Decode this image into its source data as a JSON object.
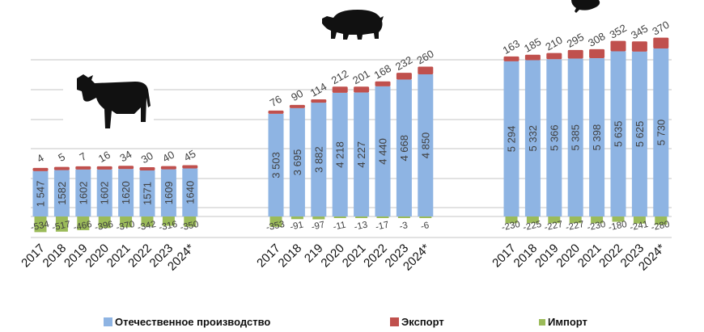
{
  "colors": {
    "production": "#8EB4E3",
    "export": "#C0504D",
    "import": "#9BBB59",
    "grid": "#D9D9D9"
  },
  "legend": [
    {
      "label": "Отечественное производство",
      "color": "#8EB4E3"
    },
    {
      "label": "Экспорт",
      "color": "#C0504D"
    },
    {
      "label": "Импорт",
      "color": "#9BBB59"
    }
  ],
  "chart_data": [
    {
      "type": "bar",
      "stacked": true,
      "subject": "cattle",
      "icon": "cow-icon",
      "categories": [
        "2017",
        "2018",
        "2019",
        "2020",
        "2021",
        "2022",
        "2023",
        "2024*"
      ],
      "series": [
        {
          "name": "Отечественное производство",
          "values": [
            1547,
            1582,
            1602,
            1602,
            1620,
            1571,
            1609,
            1640
          ],
          "labels": [
            "1 547",
            "1582",
            "1602",
            "1602",
            "1620",
            "1571",
            "1609",
            "1640"
          ]
        },
        {
          "name": "Экспорт",
          "values": [
            4,
            5,
            7,
            16,
            34,
            30,
            40,
            45
          ]
        },
        {
          "name": "Импорт",
          "values": [
            -534,
            -517,
            -466,
            -396,
            -370,
            -342,
            -316,
            -350
          ]
        }
      ]
    },
    {
      "type": "bar",
      "stacked": true,
      "subject": "pigs",
      "icon": "pig-icon",
      "categories": [
        "2017",
        "2018",
        "219",
        "2020",
        "2021",
        "2022",
        "2023",
        "2024*"
      ],
      "series": [
        {
          "name": "Отечественное производство",
          "values": [
            3503,
            3695,
            3882,
            4218,
            4227,
            4440,
            4668,
            4850
          ],
          "labels": [
            "3 503",
            "3 695",
            "3 882",
            "4 218",
            "4 227",
            "4 440",
            "4 668",
            "4 850"
          ]
        },
        {
          "name": "Экспорт",
          "values": [
            76,
            90,
            114,
            212,
            201,
            168,
            232,
            260
          ]
        },
        {
          "name": "Импорт",
          "values": [
            -353,
            -91,
            -97,
            -11,
            -13,
            -17,
            -3,
            -6
          ]
        }
      ]
    },
    {
      "type": "bar",
      "stacked": true,
      "subject": "poultry",
      "icon": "chicken-icon",
      "categories": [
        "2017",
        "2018",
        "2019",
        "2020",
        "2021",
        "2022",
        "2023",
        "2024*"
      ],
      "series": [
        {
          "name": "Отечественное производство",
          "values": [
            5294,
            5332,
            5366,
            5385,
            5398,
            5635,
            5625,
            5730
          ],
          "labels": [
            "5 294",
            "5 332",
            "5 366",
            "5 385",
            "5 398",
            "5 635",
            "5 625",
            "5 730"
          ]
        },
        {
          "name": "Экспорт",
          "values": [
            163,
            185,
            210,
            295,
            308,
            352,
            345,
            370
          ]
        },
        {
          "name": "Импорт",
          "values": [
            -230,
            -225,
            -227,
            -227,
            -230,
            -180,
            -241,
            -280
          ]
        }
      ]
    }
  ]
}
